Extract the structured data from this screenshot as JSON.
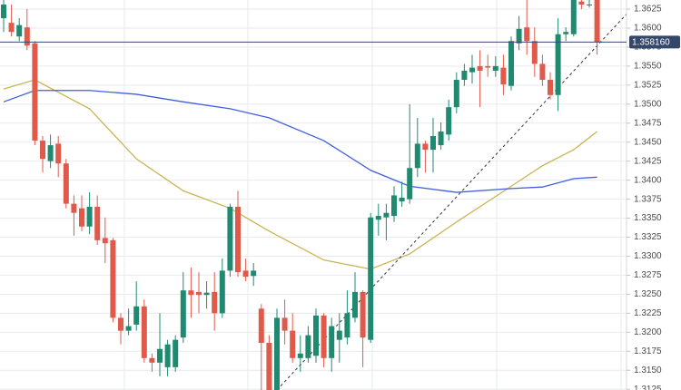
{
  "chart_data": {
    "type": "candlestick",
    "ylim": [
      1.3124,
      1.3637
    ],
    "yticks": [
      {
        "value": 1.3125,
        "label": "1.3125"
      },
      {
        "value": 1.315,
        "label": "1.3150"
      },
      1.3175,
      {
        "value": 1.32,
        "label": "1.3200"
      },
      1.3225,
      {
        "value": 1.325,
        "label": "1.3250"
      },
      1.3275,
      {
        "value": 1.33,
        "label": "1.3300"
      },
      1.3325,
      {
        "value": 1.335,
        "label": "1.3350"
      },
      1.3375,
      {
        "value": 1.34,
        "label": "1.3400"
      },
      1.3425,
      {
        "value": 1.345,
        "label": "1.3450"
      },
      1.3475,
      {
        "value": 1.35,
        "label": "1.3500"
      },
      1.3525,
      {
        "value": 1.355,
        "label": "1.3550"
      },
      1.3575,
      {
        "value": 1.36,
        "label": "1.3600"
      },
      1.3625
    ],
    "grid": true,
    "up_color": "#1f8a70",
    "down_color": "#e05a4c",
    "open": [
      1.3613,
      1.3607,
      1.3589,
      1.3601,
      1.358,
      1.3452,
      1.3425,
      1.3448,
      1.3422,
      1.3369,
      1.3363,
      1.3339,
      1.3365,
      1.3324,
      1.3321,
      1.3219,
      1.3202,
      1.321,
      1.3234,
      1.3166,
      1.316,
      1.3154,
      1.3154,
      1.3193,
      1.3255,
      1.3253,
      1.3249,
      1.3253,
      1.3225,
      1.3281,
      1.3365,
      1.3281,
      1.3274,
      1.3231,
      1.3186,
      1.3124,
      1.3219,
      1.3202,
      1.3166,
      1.3166,
      1.3169,
      1.3222,
      1.3166,
      1.319,
      1.3193,
      1.3219,
      1.3253,
      1.319,
      1.3348,
      1.3351,
      1.3353,
      1.3372,
      1.3375,
      1.3416,
      1.3448,
      1.344,
      1.3446,
      1.346,
      1.3496,
      1.3532,
      1.3542,
      1.355,
      1.355,
      1.3544,
      1.3548,
      1.3524,
      1.358,
      1.3601,
      1.3583,
      1.3553,
      1.3532,
      1.3512,
      1.3592,
      1.3592,
      1.3635,
      1.3631,
      1.3637
    ],
    "high": [
      1.3637,
      1.3631,
      1.3613,
      1.3625,
      1.3583,
      1.3458,
      1.346,
      1.3458,
      1.3428,
      1.338,
      1.338,
      1.3384,
      1.338,
      1.3351,
      1.3324,
      1.3225,
      1.3231,
      1.3267,
      1.3243,
      1.3172,
      1.3225,
      1.319,
      1.3196,
      1.3279,
      1.3285,
      1.3279,
      1.3267,
      1.3279,
      1.3297,
      1.3369,
      1.3386,
      1.3297,
      1.3291,
      1.3237,
      1.3196,
      1.3231,
      1.3243,
      1.3225,
      1.3196,
      1.3208,
      1.3231,
      1.3225,
      1.3219,
      1.3225,
      1.3255,
      1.3279,
      1.3255,
      1.3357,
      1.3369,
      1.3369,
      1.3392,
      1.3398,
      1.35,
      1.3482,
      1.3452,
      1.3482,
      1.3476,
      1.3506,
      1.3542,
      1.3553,
      1.3565,
      1.3571,
      1.3565,
      1.3563,
      1.3565,
      1.3589,
      1.3616,
      1.3637,
      1.3601,
      1.3565,
      1.3542,
      1.3613,
      1.3601,
      1.3637,
      1.3637,
      1.3637,
      1.3637
    ],
    "low": [
      1.3595,
      1.3589,
      1.3583,
      1.3571,
      1.3446,
      1.341,
      1.3416,
      1.3404,
      1.3363,
      1.3327,
      1.3333,
      1.3329,
      1.3315,
      1.3291,
      1.3213,
      1.3184,
      1.3196,
      1.3202,
      1.316,
      1.3148,
      1.3142,
      1.3142,
      1.3148,
      1.3186,
      1.3219,
      1.3225,
      1.3231,
      1.3202,
      1.3219,
      1.3273,
      1.3273,
      1.3267,
      1.3261,
      1.3124,
      1.3124,
      1.3124,
      1.3184,
      1.316,
      1.3148,
      1.316,
      1.316,
      1.3154,
      1.3148,
      1.316,
      1.3184,
      1.3213,
      1.3154,
      1.3186,
      1.3327,
      1.3321,
      1.3345,
      1.3365,
      1.3369,
      1.3404,
      1.341,
      1.341,
      1.344,
      1.3452,
      1.3488,
      1.3524,
      1.3527,
      1.3496,
      1.3536,
      1.3536,
      1.3512,
      1.3518,
      1.3571,
      1.3565,
      1.3536,
      1.3524,
      1.3506,
      1.3491,
      1.3583,
      1.3589,
      1.3625,
      1.3627,
      1.3565
    ],
    "close": [
      1.3631,
      1.3595,
      1.3604,
      1.3577,
      1.3452,
      1.3428,
      1.3446,
      1.3422,
      1.3369,
      1.3357,
      1.3339,
      1.3365,
      1.3321,
      1.3317,
      1.3219,
      1.3202,
      1.3208,
      1.3234,
      1.3166,
      1.316,
      1.3178,
      1.3184,
      1.319,
      1.3255,
      1.3249,
      1.3249,
      1.3252,
      1.3225,
      1.3281,
      1.3365,
      1.3279,
      1.3273,
      1.3281,
      1.3186,
      1.3124,
      1.3219,
      1.3202,
      1.3166,
      1.3172,
      1.3196,
      1.3222,
      1.3166,
      1.3208,
      1.3202,
      1.3225,
      1.3253,
      1.3193,
      1.3351,
      1.3353,
      1.3357,
      1.338,
      1.3377,
      1.3416,
      1.3448,
      1.344,
      1.3458,
      1.3464,
      1.3496,
      1.3532,
      1.3544,
      1.3548,
      1.3544,
      1.3548,
      1.355,
      1.3526,
      1.3583,
      1.3599,
      1.3583,
      1.3553,
      1.3532,
      1.3512,
      1.3592,
      1.3595,
      1.3637,
      1.3631,
      1.3631,
      1.3582
    ],
    "series": [
      {
        "color": "#c8b452",
        "x": [
          0,
          4,
          11,
          17,
          23,
          29,
          34,
          41,
          47,
          52,
          58,
          65,
          69,
          73,
          76
        ],
        "values": [
          1.352,
          1.3532,
          1.3494,
          1.3428,
          1.3386,
          1.3363,
          1.3333,
          1.3295,
          1.3283,
          1.3303,
          1.3345,
          1.3392,
          1.3419,
          1.344,
          1.3464
        ]
      },
      {
        "color": "#3f5fe0",
        "x": [
          0,
          4,
          11,
          17,
          23,
          29,
          34,
          41,
          47,
          52,
          58,
          65,
          69,
          73,
          76
        ],
        "values": [
          1.3503,
          1.3518,
          1.3518,
          1.3513,
          1.3503,
          1.3494,
          1.3482,
          1.3452,
          1.3413,
          1.3392,
          1.3384,
          1.3389,
          1.3391,
          1.3402,
          1.3404
        ]
      }
    ],
    "trendline": {
      "color": "#333333",
      "x": [
        35,
        80
      ],
      "values": [
        1.3124,
        1.3621
      ]
    },
    "current_price": {
      "value": 1.35816,
      "label": "1.358160",
      "color": "#34476b"
    }
  }
}
